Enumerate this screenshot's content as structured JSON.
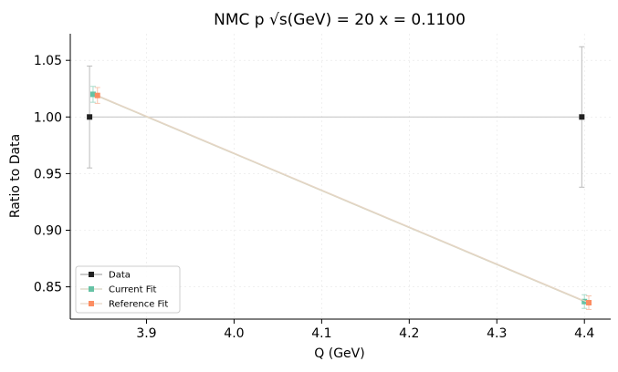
{
  "chart_data": {
    "type": "line",
    "title_main": "NMC p ",
    "title_sqrt_symbol": "√",
    "title_sqrt_arg": "s",
    "title_rest": "(GeV) = 20 x = 0.1100",
    "xlabel": "Q (GeV)",
    "ylabel": "Ratio to Data",
    "xlim": [
      3.813,
      4.43
    ],
    "ylim": [
      0.8215,
      1.0735
    ],
    "xticks": [
      3.9,
      4.0,
      4.1,
      4.2,
      4.3,
      4.4
    ],
    "xtick_labels": [
      "3.9",
      "4.0",
      "4.1",
      "4.2",
      "4.3",
      "4.4"
    ],
    "yticks": [
      0.85,
      0.9,
      0.95,
      1.0,
      1.05
    ],
    "ytick_labels": [
      "0.85",
      "0.90",
      "0.95",
      "1.00",
      "1.05"
    ],
    "grid": true,
    "legend_position": "lower-left",
    "series": [
      {
        "name": "Data",
        "color": "#222222",
        "line_color": "#c8c8c8",
        "x": [
          3.835,
          4.397
        ],
        "y": [
          1.0,
          1.0
        ],
        "yerr": [
          0.045,
          0.062
        ]
      },
      {
        "name": "Current Fit",
        "color": "#66c2a5",
        "line_color": "#d8d4c0",
        "x": [
          3.839,
          4.4
        ],
        "y": [
          1.02,
          0.837
        ],
        "yerr": [
          0.007,
          0.006
        ]
      },
      {
        "name": "Reference Fit",
        "color": "#fc8d62",
        "line_color": "#e6d6c6",
        "x": [
          3.844,
          4.405
        ],
        "y": [
          1.019,
          0.836
        ],
        "yerr": [
          0.007,
          0.006
        ]
      }
    ]
  }
}
